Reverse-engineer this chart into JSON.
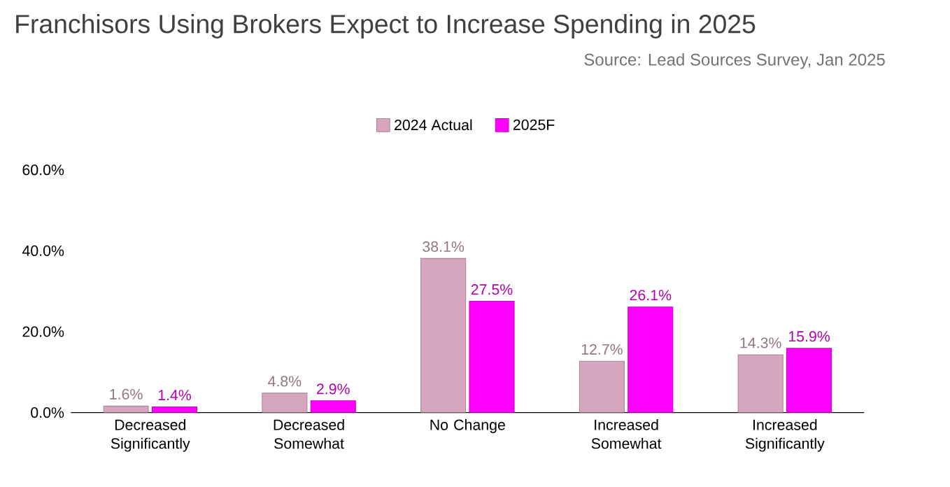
{
  "chart_data": {
    "type": "bar",
    "title": "Franchisors Using Brokers Expect to Increase Spending in 2025",
    "annotations": [
      "Source: Lead Sources Survey, Jan 2025"
    ],
    "categories": [
      "Decreased Significantly",
      "Decreased Somewhat",
      "No Change",
      "Increased Somewhat",
      "Increased Significantly"
    ],
    "series": [
      {
        "name": "2024 Actual",
        "color": "#d5a6bd",
        "values": [
          1.6,
          4.8,
          38.1,
          12.7,
          14.3
        ],
        "value_labels": [
          "1.6%",
          "4.8%",
          "38.1%",
          "12.7%",
          "14.3%"
        ]
      },
      {
        "name": "2025F",
        "color": "#ff00ff",
        "values": [
          1.4,
          2.9,
          27.5,
          26.1,
          15.9
        ],
        "value_labels": [
          "1.4%",
          "2.9%",
          "27.5%",
          "26.1%",
          "15.9%"
        ]
      }
    ],
    "ylim": [
      0,
      60
    ],
    "yticks": [
      {
        "value": 0,
        "label": "0.0%"
      },
      {
        "value": 20,
        "label": "20.0%"
      },
      {
        "value": 40,
        "label": "40.0%"
      },
      {
        "value": 60,
        "label": "60.0%"
      }
    ],
    "grid": false,
    "legend": "top"
  }
}
